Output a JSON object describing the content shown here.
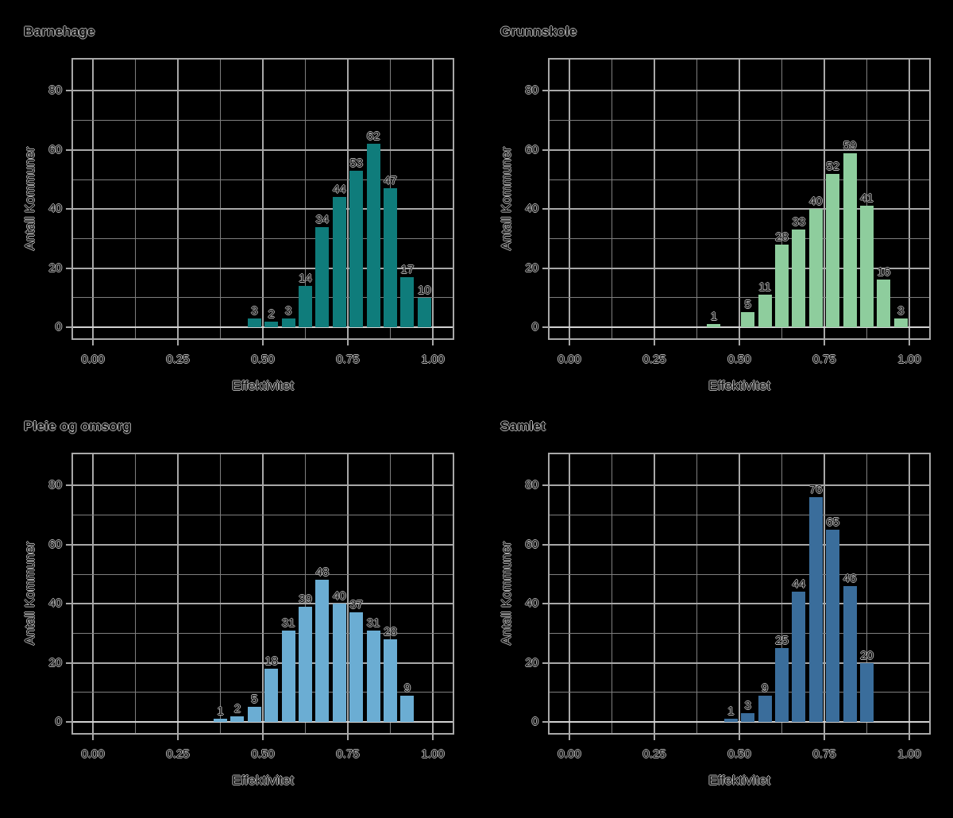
{
  "page": {
    "background": "#000000",
    "grid_color_minor": "#7f7f7f",
    "grid_color_major": "#a8a8a8",
    "axis_line_color": "#d2d2d2",
    "text_outline_color": "#b4b4b4"
  },
  "axes": {
    "x_label": "Effektivitet",
    "y_label": "Antall Kommuner",
    "x_tick_labels": [
      "0.00",
      "0.25",
      "0.50",
      "0.75",
      "1.00"
    ],
    "x_tick_values": [
      0,
      0.25,
      0.5,
      0.75,
      1.0
    ],
    "y_tick_labels": [
      "0",
      "20",
      "40",
      "60",
      "80"
    ],
    "y_tick_values": [
      0,
      20,
      40,
      60,
      80
    ],
    "x_minor_step": 0.125,
    "y_minor_step": 10
  },
  "chart_data": [
    {
      "type": "bar",
      "subtype": "histogram",
      "title": "Barnehage",
      "xlabel": "Effektivitet",
      "ylabel": "Antall Kommuner",
      "color": "#0f7c7b",
      "bin_start": 0.45,
      "bin_width": 0.05,
      "counts": [
        3,
        2,
        3,
        14,
        34,
        44,
        53,
        62,
        47,
        17,
        10
      ],
      "bar_labels": [
        "3",
        "2",
        "3",
        "14",
        "34",
        "44",
        "53",
        "62",
        "47",
        "17",
        "10"
      ],
      "xlim": [
        -0.058,
        1.058
      ],
      "ylim": [
        0,
        90
      ],
      "grid": true,
      "legend": false
    },
    {
      "type": "bar",
      "subtype": "histogram",
      "title": "Grunnskole",
      "xlabel": "Effektivitet",
      "ylabel": "Antall Kommuner",
      "color": "#8ecd9d",
      "bin_start": 0.4,
      "bin_width": 0.05,
      "counts": [
        1,
        0,
        5,
        11,
        28,
        33,
        40,
        52,
        59,
        41,
        16,
        3
      ],
      "bar_labels": [
        "1",
        "",
        "5",
        "11",
        "28",
        "33",
        "40",
        "52",
        "59",
        "41",
        "16",
        "3"
      ],
      "xlim": [
        -0.058,
        1.058
      ],
      "ylim": [
        0,
        90
      ],
      "grid": true,
      "legend": false
    },
    {
      "type": "bar",
      "subtype": "histogram",
      "title": "Pleie og omsorg",
      "xlabel": "Effektivitet",
      "ylabel": "Antall Kommuner",
      "color": "#6badd3",
      "bin_start": 0.35,
      "bin_width": 0.05,
      "counts": [
        1,
        2,
        5,
        18,
        31,
        39,
        48,
        40,
        37,
        31,
        28,
        9
      ],
      "bar_labels": [
        "1",
        "2",
        "5",
        "18",
        "31",
        "39",
        "48",
        "40",
        "37",
        "31",
        "28",
        "9"
      ],
      "xlim": [
        -0.058,
        1.058
      ],
      "ylim": [
        0,
        90
      ],
      "grid": true,
      "legend": false
    },
    {
      "type": "bar",
      "subtype": "histogram",
      "title": "Samlet",
      "xlabel": "Effektivitet",
      "ylabel": "Antall Kommuner",
      "color": "#3a6d9b",
      "bin_start": 0.45,
      "bin_width": 0.05,
      "counts": [
        1,
        3,
        9,
        25,
        44,
        76,
        65,
        46,
        20
      ],
      "bar_labels": [
        "1",
        "3",
        "9",
        "25",
        "44",
        "76",
        "65",
        "46",
        "20"
      ],
      "xlim": [
        -0.058,
        1.058
      ],
      "ylim": [
        0,
        90
      ],
      "grid": true,
      "legend": false
    }
  ]
}
